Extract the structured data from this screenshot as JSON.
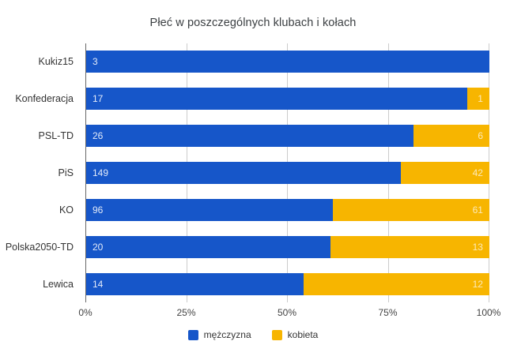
{
  "title": "Płeć w poszczególnych klubach i kołach",
  "chart_data": {
    "type": "bar",
    "subtype": "stacked-100-percent",
    "orientation": "horizontal",
    "title": "Płeć w poszczególnych klubach i kołach",
    "categories": [
      "Kukiz15",
      "Konfederacja",
      "PSL-TD",
      "PiS",
      "KO",
      "Polska2050-TD",
      "Lewica"
    ],
    "series": [
      {
        "name": "mężczyzna",
        "color": "#1656c9",
        "values": [
          3,
          17,
          26,
          149,
          96,
          20,
          14
        ]
      },
      {
        "name": "kobieta",
        "color": "#f7b500",
        "values": [
          0,
          1,
          6,
          42,
          61,
          13,
          12
        ]
      }
    ],
    "xlabel": "",
    "ylabel": "",
    "xlim_percent": [
      0,
      100
    ],
    "x_ticks": [
      "0%",
      "25%",
      "50%",
      "75%",
      "100%"
    ],
    "grid": "vertical-light-gray",
    "legend_position": "bottom",
    "value_labels": "raw-counts-inside-segments"
  },
  "colors": {
    "men": "#1656c9",
    "women": "#f7b500",
    "gridline": "#cccccc",
    "axis_line": "#666666",
    "title_text": "#3c4043",
    "tick_text": "#444444",
    "category_text": "#333333"
  }
}
